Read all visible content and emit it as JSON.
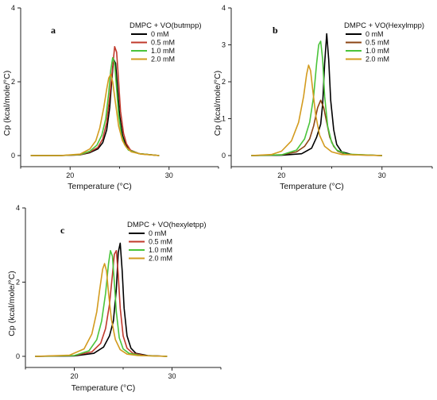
{
  "chart_data": [
    {
      "type": "line",
      "panel": "a",
      "xlabel": "Temperature (°C)",
      "ylabel": "Cp (kcal/mole/°C)",
      "xlim": [
        15,
        35
      ],
      "ylim": [
        -0.3,
        4
      ],
      "xticks": [
        20,
        30
      ],
      "yticks": [
        0,
        2,
        4
      ],
      "legend_title": "DMPC + VO(butmpp)",
      "legend_position": "top-right",
      "series": [
        {
          "name": "0 mM",
          "color": "#000000",
          "x": [
            16,
            19,
            21,
            22,
            22.8,
            23.3,
            23.7,
            24.0,
            24.2,
            24.4,
            24.6,
            24.8,
            25.0,
            25.3,
            25.6,
            26.0,
            27,
            29
          ],
          "y": [
            0,
            0,
            0.02,
            0.08,
            0.18,
            0.35,
            0.7,
            1.3,
            2.0,
            2.6,
            2.5,
            1.8,
            1.1,
            0.55,
            0.3,
            0.15,
            0.05,
            0
          ]
        },
        {
          "name": "0.5 mM",
          "color": "#c0392b",
          "x": [
            16,
            19,
            21,
            22,
            22.8,
            23.3,
            23.7,
            24.0,
            24.3,
            24.5,
            24.7,
            24.9,
            25.1,
            25.4,
            25.7,
            26.1,
            27,
            29
          ],
          "y": [
            0,
            0,
            0.02,
            0.1,
            0.22,
            0.45,
            0.9,
            1.6,
            2.4,
            2.95,
            2.8,
            2.0,
            1.2,
            0.6,
            0.32,
            0.15,
            0.05,
            0
          ]
        },
        {
          "name": "1.0 mM",
          "color": "#4ac43a",
          "x": [
            16,
            19,
            21,
            22,
            22.7,
            23.2,
            23.6,
            23.9,
            24.1,
            24.3,
            24.5,
            24.7,
            24.9,
            25.2,
            25.5,
            25.9,
            27,
            29
          ],
          "y": [
            0,
            0,
            0.03,
            0.12,
            0.28,
            0.55,
            1.0,
            1.7,
            2.3,
            2.65,
            2.5,
            1.8,
            1.1,
            0.55,
            0.3,
            0.15,
            0.05,
            0
          ]
        },
        {
          "name": "2.0 mM",
          "color": "#d39b1e",
          "x": [
            16,
            19,
            21,
            22,
            22.6,
            23.0,
            23.4,
            23.7,
            23.9,
            24.1,
            24.3,
            24.6,
            24.9,
            25.3,
            25.7,
            26.2,
            27.2,
            29
          ],
          "y": [
            0,
            0,
            0.04,
            0.18,
            0.4,
            0.75,
            1.3,
            1.8,
            2.1,
            2.2,
            2.0,
            1.4,
            0.8,
            0.4,
            0.22,
            0.1,
            0.04,
            0
          ]
        }
      ]
    },
    {
      "type": "line",
      "panel": "b",
      "xlabel": "Temperature (°C)",
      "ylabel": "Cp (kcal/mole/°C)",
      "xlim": [
        15,
        35
      ],
      "ylim": [
        -0.3,
        4
      ],
      "xticks": [
        20,
        30
      ],
      "yticks": [
        0,
        1,
        2,
        3,
        4
      ],
      "legend_title": "DMPC + VO(Hexylmpp)",
      "legend_position": "top-right",
      "series": [
        {
          "name": "0 mM",
          "color": "#000000",
          "x": [
            17,
            20,
            22,
            23,
            23.5,
            23.9,
            24.1,
            24.3,
            24.5,
            24.7,
            24.9,
            25.2,
            25.5,
            26,
            27,
            30
          ],
          "y": [
            0,
            0.01,
            0.05,
            0.2,
            0.5,
            0.85,
            1.4,
            2.5,
            3.3,
            2.6,
            1.5,
            0.7,
            0.3,
            0.1,
            0.03,
            0
          ]
        },
        {
          "name": "0.5 mM",
          "color": "#8b4513",
          "x": [
            17,
            20,
            21.5,
            22.3,
            22.8,
            23.2,
            23.6,
            23.9,
            24.2,
            24.5,
            24.8,
            25.2,
            25.6,
            26.2,
            27.2,
            30
          ],
          "y": [
            0,
            0.02,
            0.1,
            0.25,
            0.45,
            0.8,
            1.3,
            1.5,
            1.3,
            0.9,
            0.5,
            0.25,
            0.12,
            0.05,
            0.02,
            0
          ]
        },
        {
          "name": "1.0 mM",
          "color": "#4ac43a",
          "x": [
            17,
            20,
            21.5,
            22.3,
            22.8,
            23.2,
            23.5,
            23.7,
            23.9,
            24.1,
            24.3,
            24.6,
            25.0,
            25.5,
            26.5,
            30
          ],
          "y": [
            0,
            0.02,
            0.15,
            0.45,
            0.9,
            1.6,
            2.5,
            3.0,
            3.1,
            2.6,
            1.6,
            0.8,
            0.35,
            0.15,
            0.04,
            0
          ]
        },
        {
          "name": "2.0 mM",
          "color": "#d39b1e",
          "x": [
            17,
            19,
            20,
            21,
            21.7,
            22.2,
            22.5,
            22.7,
            22.9,
            23.1,
            23.4,
            23.8,
            24.3,
            25,
            26,
            30
          ],
          "y": [
            0,
            0.03,
            0.12,
            0.4,
            0.9,
            1.6,
            2.2,
            2.45,
            2.3,
            1.8,
            1.1,
            0.55,
            0.25,
            0.1,
            0.03,
            0
          ]
        }
      ]
    },
    {
      "type": "line",
      "panel": "c",
      "xlabel": "Temperature (°C)",
      "ylabel": "Cp (kcal/mole/°C)",
      "xlim": [
        15,
        35
      ],
      "ylim": [
        -0.3,
        4
      ],
      "xticks": [
        20,
        30
      ],
      "yticks": [
        0,
        2,
        4
      ],
      "legend_title": "DMPC + VO(hexyletpp)",
      "legend_position": "top-right",
      "series": [
        {
          "name": "0 mM",
          "color": "#000000",
          "x": [
            16,
            20,
            22,
            23,
            23.6,
            24.0,
            24.3,
            24.5,
            24.7,
            24.9,
            25.1,
            25.4,
            25.8,
            26.3,
            27.5,
            29.5
          ],
          "y": [
            0,
            0.01,
            0.08,
            0.25,
            0.55,
            0.95,
            1.8,
            2.8,
            3.05,
            2.3,
            1.3,
            0.55,
            0.22,
            0.08,
            0.02,
            0
          ]
        },
        {
          "name": "0.5 mM",
          "color": "#c0392b",
          "x": [
            16,
            20,
            21.8,
            22.7,
            23.2,
            23.6,
            23.9,
            24.1,
            24.3,
            24.5,
            24.7,
            25.0,
            25.4,
            26.0,
            27.2,
            29.5
          ],
          "y": [
            0,
            0.02,
            0.12,
            0.35,
            0.75,
            1.4,
            2.2,
            2.75,
            2.85,
            2.2,
            1.3,
            0.55,
            0.22,
            0.08,
            0.02,
            0
          ]
        },
        {
          "name": "1.0 mM",
          "color": "#4ac43a",
          "x": [
            16,
            20,
            21.5,
            22.3,
            22.8,
            23.2,
            23.5,
            23.7,
            23.9,
            24.1,
            24.3,
            24.6,
            25.0,
            25.6,
            26.8,
            29.5
          ],
          "y": [
            0,
            0.02,
            0.15,
            0.45,
            0.95,
            1.7,
            2.5,
            2.85,
            2.7,
            2.0,
            1.2,
            0.5,
            0.2,
            0.08,
            0.02,
            0
          ]
        },
        {
          "name": "2.0 mM",
          "color": "#d39b1e",
          "x": [
            16,
            19.5,
            21,
            21.8,
            22.3,
            22.6,
            22.9,
            23.1,
            23.3,
            23.5,
            23.8,
            24.2,
            24.7,
            25.4,
            26.5,
            29.5
          ],
          "y": [
            0,
            0.03,
            0.2,
            0.6,
            1.2,
            1.8,
            2.35,
            2.5,
            2.3,
            1.7,
            1.0,
            0.45,
            0.18,
            0.06,
            0.02,
            0
          ]
        }
      ]
    }
  ]
}
